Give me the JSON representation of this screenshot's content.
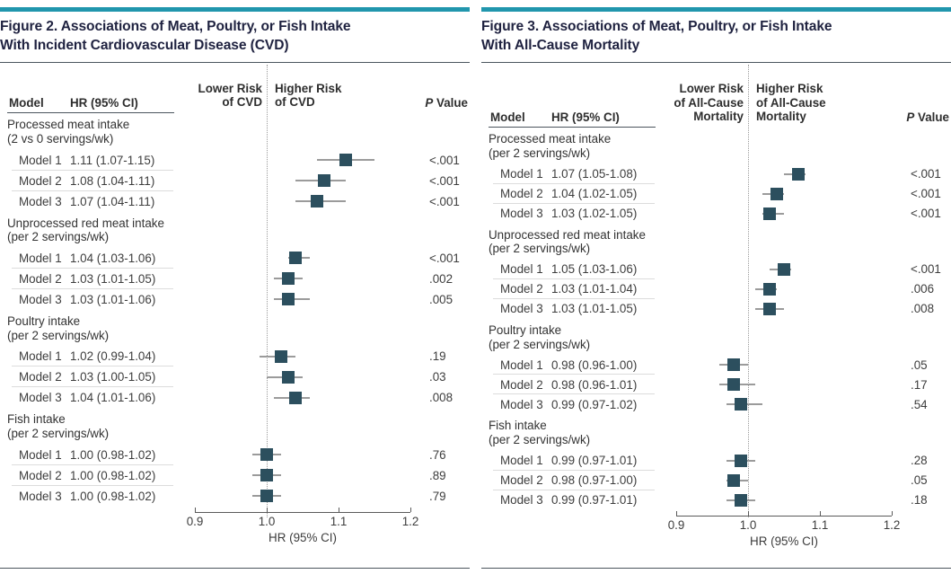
{
  "theme": {
    "accent_bar": "#2196ad",
    "title_text": "#1f2240",
    "marker": "#2c4f5e",
    "ci_line": "#9b9b9b",
    "rule": "#4b555e",
    "row_separator": "#dcdcdc"
  },
  "chart_data": [
    {
      "type": "scatter",
      "subtype": "forest-plot",
      "title": "Figure 2. Associations of Meat, Poultry, or Fish Intake\nWith Incident Cardiovascular Disease (CVD)",
      "columns": {
        "model": "Model",
        "hr": "HR (95% CI)",
        "p_prefix": "P",
        "p_suffix": " Value"
      },
      "lower_risk_label": "Lower Risk\nof CVD",
      "higher_risk_label": "Higher Risk\nof CVD",
      "xlabel": "HR (95% CI)",
      "xlim": [
        0.9,
        1.2
      ],
      "ref_line": 1.0,
      "x_ticks": [
        0.9,
        1.0,
        1.1,
        1.2
      ],
      "x_tick_labels": [
        "0.9",
        "1.0",
        "1.1",
        "1.2"
      ],
      "groups": [
        {
          "name": "Processed meat intake",
          "sub": "(2 vs 0 servings/wk)",
          "rows": [
            {
              "model": "Model 1",
              "hr_text": "1.11 (1.07-1.15)",
              "hr": 1.11,
              "ci_low": 1.07,
              "ci_high": 1.15,
              "p": "<.001"
            },
            {
              "model": "Model 2",
              "hr_text": "1.08 (1.04-1.11)",
              "hr": 1.08,
              "ci_low": 1.04,
              "ci_high": 1.11,
              "p": "<.001"
            },
            {
              "model": "Model 3",
              "hr_text": "1.07 (1.04-1.11)",
              "hr": 1.07,
              "ci_low": 1.04,
              "ci_high": 1.11,
              "p": "<.001"
            }
          ]
        },
        {
          "name": "Unprocessed red meat intake",
          "sub": "(per 2 servings/wk)",
          "rows": [
            {
              "model": "Model 1",
              "hr_text": "1.04 (1.03-1.06)",
              "hr": 1.04,
              "ci_low": 1.03,
              "ci_high": 1.06,
              "p": "<.001"
            },
            {
              "model": "Model 2",
              "hr_text": "1.03 (1.01-1.05)",
              "hr": 1.03,
              "ci_low": 1.01,
              "ci_high": 1.05,
              "p": ".002"
            },
            {
              "model": "Model 3",
              "hr_text": "1.03 (1.01-1.06)",
              "hr": 1.03,
              "ci_low": 1.01,
              "ci_high": 1.06,
              "p": ".005"
            }
          ]
        },
        {
          "name": "Poultry intake",
          "sub": "(per 2 servings/wk)",
          "rows": [
            {
              "model": "Model 1",
              "hr_text": "1.02 (0.99-1.04)",
              "hr": 1.02,
              "ci_low": 0.99,
              "ci_high": 1.04,
              "p": ".19"
            },
            {
              "model": "Model 2",
              "hr_text": "1.03 (1.00-1.05)",
              "hr": 1.03,
              "ci_low": 1.0,
              "ci_high": 1.05,
              "p": ".03"
            },
            {
              "model": "Model 3",
              "hr_text": "1.04 (1.01-1.06)",
              "hr": 1.04,
              "ci_low": 1.01,
              "ci_high": 1.06,
              "p": ".008"
            }
          ]
        },
        {
          "name": "Fish intake",
          "sub": "(per 2 servings/wk)",
          "rows": [
            {
              "model": "Model 1",
              "hr_text": "1.00 (0.98-1.02)",
              "hr": 1.0,
              "ci_low": 0.98,
              "ci_high": 1.02,
              "p": ".76"
            },
            {
              "model": "Model 2",
              "hr_text": "1.00 (0.98-1.02)",
              "hr": 1.0,
              "ci_low": 0.98,
              "ci_high": 1.02,
              "p": ".89"
            },
            {
              "model": "Model 3",
              "hr_text": "1.00 (0.98-1.02)",
              "hr": 1.0,
              "ci_low": 0.98,
              "ci_high": 1.02,
              "p": ".79"
            }
          ]
        }
      ]
    },
    {
      "type": "scatter",
      "subtype": "forest-plot",
      "title": "Figure 3. Associations of Meat, Poultry, or Fish Intake\nWith All-Cause Mortality",
      "columns": {
        "model": "Model",
        "hr": "HR (95% CI)",
        "p_prefix": "P",
        "p_suffix": " Value"
      },
      "lower_risk_label": "Lower Risk\nof All-Cause\nMortality",
      "higher_risk_label": "Higher Risk\nof All-Cause\nMortality",
      "xlabel": "HR (95% CI)",
      "xlim": [
        0.9,
        1.2
      ],
      "ref_line": 1.0,
      "x_ticks": [
        0.9,
        1.0,
        1.1,
        1.2
      ],
      "x_tick_labels": [
        "0.9",
        "1.0",
        "1.1",
        "1.2"
      ],
      "groups": [
        {
          "name": "Processed meat intake",
          "sub": "(per 2 servings/wk)",
          "rows": [
            {
              "model": "Model 1",
              "hr_text": "1.07 (1.05-1.08)",
              "hr": 1.07,
              "ci_low": 1.05,
              "ci_high": 1.08,
              "p": "<.001"
            },
            {
              "model": "Model 2",
              "hr_text": "1.04 (1.02-1.05)",
              "hr": 1.04,
              "ci_low": 1.02,
              "ci_high": 1.05,
              "p": "<.001"
            },
            {
              "model": "Model 3",
              "hr_text": "1.03 (1.02-1.05)",
              "hr": 1.03,
              "ci_low": 1.02,
              "ci_high": 1.05,
              "p": "<.001"
            }
          ]
        },
        {
          "name": "Unprocessed red meat intake",
          "sub": "(per 2 servings/wk)",
          "rows": [
            {
              "model": "Model 1",
              "hr_text": "1.05 (1.03-1.06)",
              "hr": 1.05,
              "ci_low": 1.03,
              "ci_high": 1.06,
              "p": "<.001"
            },
            {
              "model": "Model 2",
              "hr_text": "1.03 (1.01-1.04)",
              "hr": 1.03,
              "ci_low": 1.01,
              "ci_high": 1.04,
              "p": ".006"
            },
            {
              "model": "Model 3",
              "hr_text": "1.03 (1.01-1.05)",
              "hr": 1.03,
              "ci_low": 1.01,
              "ci_high": 1.05,
              "p": ".008"
            }
          ]
        },
        {
          "name": "Poultry intake",
          "sub": "(per 2 servings/wk)",
          "rows": [
            {
              "model": "Model 1",
              "hr_text": "0.98 (0.96-1.00)",
              "hr": 0.98,
              "ci_low": 0.96,
              "ci_high": 1.0,
              "p": ".05"
            },
            {
              "model": "Model 2",
              "hr_text": "0.98 (0.96-1.01)",
              "hr": 0.98,
              "ci_low": 0.96,
              "ci_high": 1.01,
              "p": ".17"
            },
            {
              "model": "Model 3",
              "hr_text": "0.99 (0.97-1.02)",
              "hr": 0.99,
              "ci_low": 0.97,
              "ci_high": 1.02,
              "p": ".54"
            }
          ]
        },
        {
          "name": "Fish intake",
          "sub": "(per 2 servings/wk)",
          "rows": [
            {
              "model": "Model 1",
              "hr_text": "0.99 (0.97-1.01)",
              "hr": 0.99,
              "ci_low": 0.97,
              "ci_high": 1.01,
              "p": ".28"
            },
            {
              "model": "Model 2",
              "hr_text": "0.98 (0.97-1.00)",
              "hr": 0.98,
              "ci_low": 0.97,
              "ci_high": 1.0,
              "p": ".05"
            },
            {
              "model": "Model 3",
              "hr_text": "0.99 (0.97-1.01)",
              "hr": 0.99,
              "ci_low": 0.97,
              "ci_high": 1.01,
              "p": ".18"
            }
          ]
        }
      ]
    }
  ]
}
